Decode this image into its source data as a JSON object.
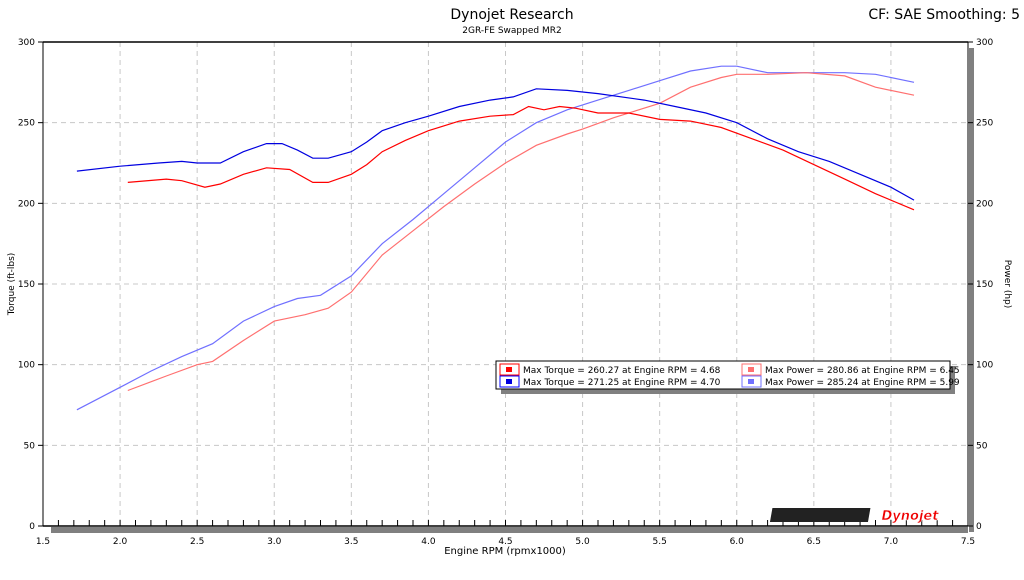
{
  "chart_data": {
    "type": "line",
    "title": "Dynojet Research",
    "subtitle": "2GR-FE Swapped MR2",
    "header_right": "CF: SAE Smoothing: 5",
    "xlabel": "Engine RPM (rpmx1000)",
    "ylabel": "Torque (ft-lbs)",
    "y2label": "Power (hp)",
    "xlim": [
      1.5,
      7.5
    ],
    "ylim": [
      0,
      300
    ],
    "y2lim": [
      0,
      300
    ],
    "grid": true,
    "xticks": [
      "1.5",
      "2.0",
      "2.5",
      "3.0",
      "3.5",
      "4.0",
      "4.5",
      "5.0",
      "5.5",
      "6.0",
      "6.5",
      "7.0",
      "7.5"
    ],
    "yticks": [
      "0",
      "50",
      "100",
      "150",
      "200",
      "250",
      "300"
    ],
    "legend_position": "center-right",
    "colors": {
      "red_torque": "#ff0000",
      "blue_torque": "#0000e0",
      "red_power": "#ff7070",
      "blue_power": "#7070ff"
    },
    "legend": [
      {
        "text": "Max Torque = 260.27 at Engine RPM = 4.68",
        "color": "#ff0000",
        "swatch_border": "#ff0000"
      },
      {
        "text": "Max Power = 280.86 at Engine RPM = 6.45",
        "color": "#ff7070",
        "swatch_border": "#ff7070"
      },
      {
        "text": "Max Torque = 271.25 at Engine RPM = 4.70",
        "color": "#0000e0",
        "swatch_border": "#0000ff"
      },
      {
        "text": "Max Power = 285.24 at Engine RPM = 5.99",
        "color": "#7070ff",
        "swatch_border": "#7070ff"
      }
    ],
    "series": [
      {
        "key": "blue_power",
        "x": [
          1.72,
          2.0,
          2.2,
          2.4,
          2.6,
          2.8,
          3.0,
          3.15,
          3.3,
          3.5,
          3.7,
          3.9,
          4.1,
          4.3,
          4.5,
          4.7,
          4.9,
          5.1,
          5.3,
          5.5,
          5.7,
          5.9,
          6.0,
          6.2,
          6.5,
          6.7,
          6.9,
          7.15
        ],
        "y": [
          72,
          86,
          96,
          105,
          113,
          127,
          136,
          141,
          143,
          155,
          175,
          190,
          206,
          222,
          238,
          250,
          258,
          264,
          270,
          276,
          282,
          285,
          285,
          281,
          281,
          281,
          280,
          275
        ]
      },
      {
        "key": "red_power",
        "x": [
          2.05,
          2.3,
          2.5,
          2.6,
          2.8,
          3.0,
          3.2,
          3.35,
          3.5,
          3.7,
          3.9,
          4.1,
          4.3,
          4.5,
          4.7,
          4.9,
          5.0,
          5.2,
          5.5,
          5.7,
          5.9,
          6.0,
          6.2,
          6.45,
          6.7,
          6.9,
          7.15
        ],
        "y": [
          84,
          93,
          100,
          102,
          115,
          127,
          131,
          135,
          145,
          168,
          183,
          198,
          212,
          225,
          236,
          243,
          246,
          253,
          262,
          272,
          278,
          280,
          280,
          281,
          279,
          272,
          267
        ]
      },
      {
        "key": "blue_torque",
        "x": [
          1.72,
          2.0,
          2.25,
          2.4,
          2.5,
          2.65,
          2.8,
          2.95,
          3.05,
          3.15,
          3.25,
          3.35,
          3.5,
          3.6,
          3.7,
          3.85,
          4.0,
          4.2,
          4.4,
          4.55,
          4.7,
          4.9,
          5.1,
          5.4,
          5.6,
          5.8,
          6.0,
          6.2,
          6.4,
          6.6,
          6.8,
          7.0,
          7.15
        ],
        "y": [
          220,
          223,
          225,
          226,
          225,
          225,
          232,
          237,
          237,
          233,
          228,
          228,
          232,
          238,
          245,
          250,
          254,
          260,
          264,
          266,
          271,
          270,
          268,
          264,
          260,
          256,
          250,
          240,
          232,
          226,
          218,
          210,
          202
        ]
      },
      {
        "key": "red_torque",
        "x": [
          2.05,
          2.3,
          2.4,
          2.55,
          2.65,
          2.8,
          2.95,
          3.1,
          3.25,
          3.35,
          3.5,
          3.6,
          3.7,
          3.85,
          4.0,
          4.2,
          4.4,
          4.55,
          4.65,
          4.75,
          4.85,
          4.95,
          5.1,
          5.3,
          5.5,
          5.7,
          5.9,
          6.1,
          6.3,
          6.5,
          6.7,
          6.9,
          7.15
        ],
        "y": [
          213,
          215,
          214,
          210,
          212,
          218,
          222,
          221,
          213,
          213,
          218,
          224,
          232,
          239,
          245,
          251,
          254,
          255,
          260,
          258,
          260,
          259,
          256,
          256,
          252,
          251,
          247,
          240,
          233,
          224,
          215,
          206,
          196
        ]
      }
    ],
    "logo_text": "Dynojet"
  }
}
